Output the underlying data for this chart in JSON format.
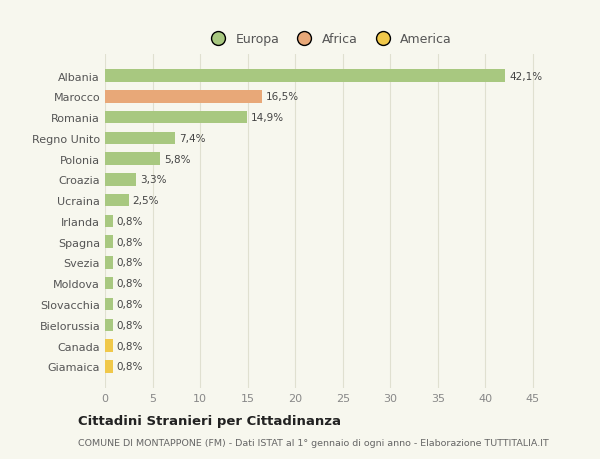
{
  "categories": [
    "Albania",
    "Marocco",
    "Romania",
    "Regno Unito",
    "Polonia",
    "Croazia",
    "Ucraina",
    "Irlanda",
    "Spagna",
    "Svezia",
    "Moldova",
    "Slovacchia",
    "Bielorussia",
    "Canada",
    "Giamaica"
  ],
  "values": [
    42.1,
    16.5,
    14.9,
    7.4,
    5.8,
    3.3,
    2.5,
    0.8,
    0.8,
    0.8,
    0.8,
    0.8,
    0.8,
    0.8,
    0.8
  ],
  "colors": [
    "#a8c880",
    "#e8a878",
    "#a8c880",
    "#a8c880",
    "#a8c880",
    "#a8c880",
    "#a8c880",
    "#a8c880",
    "#a8c880",
    "#a8c880",
    "#a8c880",
    "#a8c880",
    "#a8c880",
    "#f0c84a",
    "#f0c84a"
  ],
  "labels": [
    "42,1%",
    "16,5%",
    "14,9%",
    "7,4%",
    "5,8%",
    "3,3%",
    "2,5%",
    "0,8%",
    "0,8%",
    "0,8%",
    "0,8%",
    "0,8%",
    "0,8%",
    "0,8%",
    "0,8%"
  ],
  "legend": [
    {
      "label": "Europa",
      "color": "#a8c880"
    },
    {
      "label": "Africa",
      "color": "#e8a878"
    },
    {
      "label": "America",
      "color": "#f0c84a"
    }
  ],
  "xlim": [
    0,
    47
  ],
  "xticks": [
    0,
    5,
    10,
    15,
    20,
    25,
    30,
    35,
    40,
    45
  ],
  "title": "Cittadini Stranieri per Cittadinanza",
  "subtitle": "COMUNE DI MONTAPPONE (FM) - Dati ISTAT al 1° gennaio di ogni anno - Elaborazione TUTTITALIA.IT",
  "background_color": "#f7f7ee",
  "grid_color": "#e0e0d0",
  "bar_height": 0.6
}
